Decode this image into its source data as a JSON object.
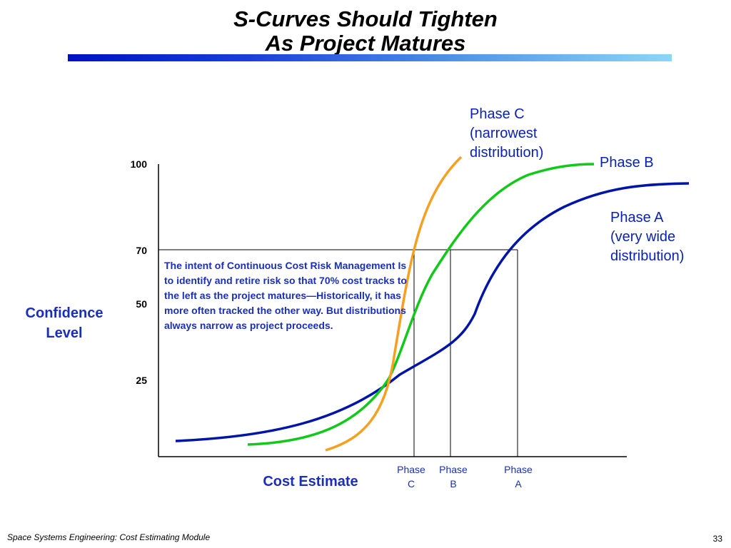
{
  "slide": {
    "title_line_1": "S-Curves Should Tighten",
    "title_line_2": "As Project Matures",
    "footer": "Space Systems Engineering: Cost Estimating Module",
    "page_number": "33"
  },
  "chart_data": {
    "type": "line",
    "ylabel": "Confidence Level",
    "xlabel": "Cost Estimate",
    "yticks": [
      "100",
      "70",
      "50",
      "25"
    ],
    "ylim": [
      0,
      100
    ],
    "threshold": 70,
    "series": [
      {
        "name": "Phase A",
        "color": "#0015a8"
      },
      {
        "name": "Phase B",
        "color": "#12c81a"
      },
      {
        "name": "Phase C",
        "color": "#f5a020"
      }
    ],
    "x_markers": [
      {
        "line1": "Phase",
        "line2": "C"
      },
      {
        "line1": "Phase",
        "line2": "B"
      },
      {
        "line1": "Phase",
        "line2": "A"
      }
    ],
    "annotations": {
      "phase_c": [
        "Phase C",
        "(narrowest",
        "distribution)"
      ],
      "phase_b": [
        "Phase B"
      ],
      "phase_a": [
        "Phase A",
        "(very wide",
        "distribution)"
      ]
    },
    "explanation": "The intent of Continuous Cost Risk Management Is to identify and retire risk so that 70% cost tracks to the left as the project matures—Historically,  it has more often tracked the other way.  But distributions always narrow as project proceeds."
  }
}
